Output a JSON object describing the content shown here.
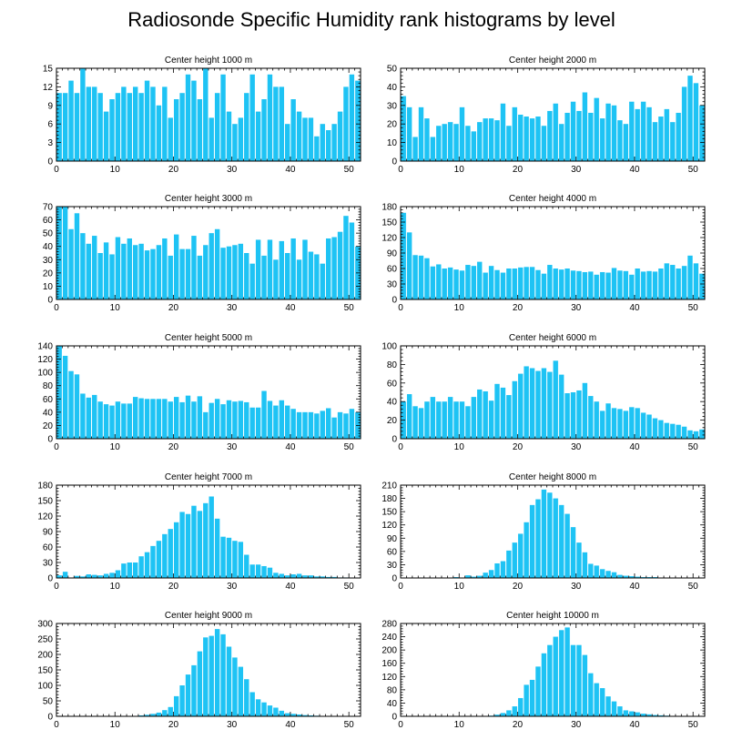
{
  "title": "Radiosonde Specific Humidity rank histograms by level",
  "bar_color": "#1ec3f4",
  "chart_data": [
    {
      "type": "bar",
      "title": "Center height 1000 m",
      "x": [
        0,
        1,
        2,
        3,
        4,
        5,
        6,
        7,
        8,
        9,
        10,
        11,
        12,
        13,
        14,
        15,
        16,
        17,
        18,
        19,
        20,
        21,
        22,
        23,
        24,
        25,
        26,
        27,
        28,
        29,
        30,
        31,
        32,
        33,
        34,
        35,
        36,
        37,
        38,
        39,
        40,
        41,
        42,
        43,
        44,
        45,
        46,
        47,
        48,
        49,
        50,
        51
      ],
      "values": [
        11,
        11,
        13,
        11,
        15,
        12,
        12,
        11,
        8,
        10,
        11,
        12,
        11,
        12,
        11,
        13,
        12,
        9,
        12,
        7,
        10,
        11,
        14,
        13,
        10,
        15,
        7,
        11,
        14,
        8,
        6,
        7,
        11,
        14,
        8,
        10,
        14,
        12,
        12,
        6,
        10,
        8,
        7,
        7,
        4,
        6,
        5,
        6,
        8,
        12,
        14,
        13
      ],
      "xlim": [
        0,
        52
      ],
      "ylim": [
        0,
        15
      ],
      "xticks": [
        0,
        10,
        20,
        30,
        40,
        50
      ],
      "yticks": [
        0,
        3,
        6,
        9,
        12,
        15
      ]
    },
    {
      "type": "bar",
      "title": "Center height 2000 m",
      "x": [
        0,
        1,
        2,
        3,
        4,
        5,
        6,
        7,
        8,
        9,
        10,
        11,
        12,
        13,
        14,
        15,
        16,
        17,
        18,
        19,
        20,
        21,
        22,
        23,
        24,
        25,
        26,
        27,
        28,
        29,
        30,
        31,
        32,
        33,
        34,
        35,
        36,
        37,
        38,
        39,
        40,
        41,
        42,
        43,
        44,
        45,
        46,
        47,
        48,
        49,
        50,
        51
      ],
      "values": [
        35,
        29,
        13,
        29,
        23,
        13,
        19,
        20,
        21,
        20,
        29,
        19,
        16,
        21,
        23,
        23,
        22,
        31,
        19,
        29,
        25,
        24,
        23,
        24,
        19,
        27,
        31,
        20,
        26,
        32,
        27,
        37,
        26,
        34,
        23,
        31,
        30,
        22,
        20,
        32,
        28,
        32,
        29,
        21,
        24,
        28,
        21,
        26,
        40,
        46,
        42,
        30
      ],
      "xlim": [
        0,
        52
      ],
      "ylim": [
        0,
        50
      ],
      "xticks": [
        0,
        10,
        20,
        30,
        40,
        50
      ],
      "yticks": [
        0,
        10,
        20,
        30,
        40,
        50
      ]
    },
    {
      "type": "bar",
      "title": "Center height 3000 m",
      "x": [
        0,
        1,
        2,
        3,
        4,
        5,
        6,
        7,
        8,
        9,
        10,
        11,
        12,
        13,
        14,
        15,
        16,
        17,
        18,
        19,
        20,
        21,
        22,
        23,
        24,
        25,
        26,
        27,
        28,
        29,
        30,
        31,
        32,
        33,
        34,
        35,
        36,
        37,
        38,
        39,
        40,
        41,
        42,
        43,
        44,
        45,
        46,
        47,
        48,
        49,
        50,
        51
      ],
      "values": [
        70,
        70,
        53,
        65,
        50,
        42,
        48,
        35,
        43,
        34,
        47,
        42,
        46,
        41,
        42,
        37,
        38,
        41,
        46,
        33,
        49,
        38,
        38,
        48,
        33,
        41,
        50,
        53,
        39,
        40,
        41,
        42,
        35,
        27,
        45,
        33,
        45,
        30,
        44,
        35,
        46,
        30,
        45,
        36,
        34,
        27,
        46,
        47,
        51,
        63,
        58,
        40
      ],
      "xlim": [
        0,
        52
      ],
      "ylim": [
        0,
        70
      ],
      "xticks": [
        0,
        10,
        20,
        30,
        40,
        50
      ],
      "yticks": [
        0,
        10,
        20,
        30,
        40,
        50,
        60,
        70
      ]
    },
    {
      "type": "bar",
      "title": "Center height 4000 m",
      "x": [
        0,
        1,
        2,
        3,
        4,
        5,
        6,
        7,
        8,
        9,
        10,
        11,
        12,
        13,
        14,
        15,
        16,
        17,
        18,
        19,
        20,
        21,
        22,
        23,
        24,
        25,
        26,
        27,
        28,
        29,
        30,
        31,
        32,
        33,
        34,
        35,
        36,
        37,
        38,
        39,
        40,
        41,
        42,
        43,
        44,
        45,
        46,
        47,
        48,
        49,
        50,
        51
      ],
      "values": [
        168,
        130,
        86,
        85,
        80,
        64,
        68,
        60,
        62,
        58,
        56,
        67,
        65,
        73,
        52,
        65,
        57,
        52,
        60,
        60,
        62,
        63,
        63,
        57,
        50,
        67,
        60,
        58,
        60,
        56,
        55,
        53,
        54,
        48,
        53,
        52,
        61,
        56,
        55,
        48,
        60,
        54,
        55,
        54,
        60,
        70,
        67,
        60,
        65,
        85,
        70,
        50
      ],
      "xlim": [
        0,
        52
      ],
      "ylim": [
        0,
        180
      ],
      "xticks": [
        0,
        10,
        20,
        30,
        40,
        50
      ],
      "yticks": [
        0,
        30,
        60,
        90,
        120,
        150,
        180
      ]
    },
    {
      "type": "bar",
      "title": "Center height 5000 m",
      "x": [
        0,
        1,
        2,
        3,
        4,
        5,
        6,
        7,
        8,
        9,
        10,
        11,
        12,
        13,
        14,
        15,
        16,
        17,
        18,
        19,
        20,
        21,
        22,
        23,
        24,
        25,
        26,
        27,
        28,
        29,
        30,
        31,
        32,
        33,
        34,
        35,
        36,
        37,
        38,
        39,
        40,
        41,
        42,
        43,
        44,
        45,
        46,
        47,
        48,
        49,
        50,
        51
      ],
      "values": [
        140,
        125,
        102,
        97,
        68,
        62,
        66,
        56,
        52,
        50,
        56,
        53,
        53,
        63,
        61,
        60,
        60,
        60,
        60,
        56,
        63,
        55,
        65,
        56,
        64,
        40,
        54,
        60,
        52,
        58,
        56,
        57,
        55,
        47,
        47,
        72,
        57,
        50,
        58,
        50,
        45,
        40,
        40,
        40,
        38,
        42,
        46,
        32,
        40,
        38,
        45,
        40
      ],
      "xlim": [
        0,
        52
      ],
      "ylim": [
        0,
        140
      ],
      "xticks": [
        0,
        10,
        20,
        30,
        40,
        50
      ],
      "yticks": [
        0,
        20,
        40,
        60,
        80,
        100,
        120,
        140
      ]
    },
    {
      "type": "bar",
      "title": "Center height 6000 m",
      "x": [
        0,
        1,
        2,
        3,
        4,
        5,
        6,
        7,
        8,
        9,
        10,
        11,
        12,
        13,
        14,
        15,
        16,
        17,
        18,
        19,
        20,
        21,
        22,
        23,
        24,
        25,
        26,
        27,
        28,
        29,
        30,
        31,
        32,
        33,
        34,
        35,
        36,
        37,
        38,
        39,
        40,
        41,
        42,
        43,
        44,
        45,
        46,
        47,
        48,
        49,
        50,
        51
      ],
      "values": [
        40,
        48,
        35,
        33,
        40,
        45,
        40,
        40,
        45,
        40,
        40,
        35,
        45,
        53,
        51,
        41,
        59,
        55,
        47,
        62,
        70,
        78,
        76,
        73,
        76,
        72,
        84,
        69,
        49,
        50,
        52,
        60,
        46,
        40,
        30,
        38,
        33,
        32,
        30,
        34,
        33,
        28,
        26,
        22,
        20,
        17,
        16,
        15,
        13,
        9,
        8,
        10
      ],
      "xlim": [
        0,
        52
      ],
      "ylim": [
        0,
        100
      ],
      "xticks": [
        0,
        10,
        20,
        30,
        40,
        50
      ],
      "yticks": [
        0,
        20,
        40,
        60,
        80,
        100
      ]
    },
    {
      "type": "bar",
      "title": "Center height 7000 m",
      "x": [
        0,
        1,
        2,
        3,
        4,
        5,
        6,
        7,
        8,
        9,
        10,
        11,
        12,
        13,
        14,
        15,
        16,
        17,
        18,
        19,
        20,
        21,
        22,
        23,
        24,
        25,
        26,
        27,
        28,
        29,
        30,
        31,
        32,
        33,
        34,
        35,
        36,
        37,
        38,
        39,
        40,
        41,
        42,
        43,
        44,
        45,
        46,
        47,
        48,
        49,
        50,
        51
      ],
      "values": [
        5,
        12,
        0,
        4,
        3,
        7,
        6,
        5,
        8,
        10,
        15,
        28,
        30,
        30,
        42,
        50,
        62,
        72,
        85,
        95,
        108,
        128,
        124,
        140,
        130,
        145,
        158,
        115,
        80,
        78,
        72,
        70,
        45,
        26,
        26,
        23,
        20,
        10,
        8,
        5,
        7,
        8,
        5,
        5,
        3,
        3,
        2,
        2,
        1,
        1,
        0,
        0
      ],
      "xlim": [
        0,
        52
      ],
      "ylim": [
        0,
        180
      ],
      "xticks": [
        0,
        10,
        20,
        30,
        40,
        50
      ],
      "yticks": [
        0,
        30,
        60,
        90,
        120,
        150,
        180
      ]
    },
    {
      "type": "bar",
      "title": "Center height 8000 m",
      "x": [
        0,
        1,
        2,
        3,
        4,
        5,
        6,
        7,
        8,
        9,
        10,
        11,
        12,
        13,
        14,
        15,
        16,
        17,
        18,
        19,
        20,
        21,
        22,
        23,
        24,
        25,
        26,
        27,
        28,
        29,
        30,
        31,
        32,
        33,
        34,
        35,
        36,
        37,
        38,
        39,
        40,
        41,
        42,
        43,
        44,
        45,
        46,
        47,
        48,
        49,
        50,
        51
      ],
      "values": [
        0,
        0,
        0,
        0,
        0,
        0,
        0,
        0,
        0,
        2,
        0,
        6,
        3,
        5,
        12,
        18,
        33,
        38,
        62,
        80,
        100,
        126,
        165,
        178,
        200,
        193,
        180,
        165,
        145,
        115,
        80,
        58,
        32,
        28,
        20,
        16,
        13,
        7,
        5,
        4,
        3,
        2,
        2,
        2,
        1,
        1,
        0,
        1,
        0,
        1,
        0,
        0
      ],
      "xlim": [
        0,
        52
      ],
      "ylim": [
        0,
        210
      ],
      "xticks": [
        0,
        10,
        20,
        30,
        40,
        50
      ],
      "yticks": [
        0,
        30,
        60,
        90,
        120,
        150,
        180,
        210
      ]
    },
    {
      "type": "bar",
      "title": "Center height 9000 m",
      "x": [
        0,
        1,
        2,
        3,
        4,
        5,
        6,
        7,
        8,
        9,
        10,
        11,
        12,
        13,
        14,
        15,
        16,
        17,
        18,
        19,
        20,
        21,
        22,
        23,
        24,
        25,
        26,
        27,
        28,
        29,
        30,
        31,
        32,
        33,
        34,
        35,
        36,
        37,
        38,
        39,
        40,
        41,
        42,
        43,
        44,
        45,
        46,
        47,
        48,
        49,
        50,
        51
      ],
      "values": [
        0,
        0,
        0,
        0,
        0,
        0,
        0,
        0,
        0,
        0,
        0,
        0,
        0,
        0,
        3,
        5,
        8,
        12,
        20,
        30,
        65,
        100,
        135,
        165,
        210,
        255,
        260,
        282,
        265,
        225,
        190,
        160,
        120,
        78,
        55,
        45,
        35,
        28,
        18,
        10,
        8,
        6,
        4,
        3,
        2,
        1,
        1,
        0,
        0,
        0,
        0,
        0
      ],
      "xlim": [
        0,
        52
      ],
      "ylim": [
        0,
        300
      ],
      "xticks": [
        0,
        10,
        20,
        30,
        40,
        50
      ],
      "yticks": [
        0,
        50,
        100,
        150,
        200,
        250,
        300
      ]
    },
    {
      "type": "bar",
      "title": "Center height 10000 m",
      "x": [
        0,
        1,
        2,
        3,
        4,
        5,
        6,
        7,
        8,
        9,
        10,
        11,
        12,
        13,
        14,
        15,
        16,
        17,
        18,
        19,
        20,
        21,
        22,
        23,
        24,
        25,
        26,
        27,
        28,
        29,
        30,
        31,
        32,
        33,
        34,
        35,
        36,
        37,
        38,
        39,
        40,
        41,
        42,
        43,
        44,
        45,
        46,
        47,
        48,
        49,
        50,
        51
      ],
      "values": [
        0,
        0,
        0,
        0,
        0,
        0,
        0,
        0,
        0,
        0,
        0,
        0,
        0,
        0,
        0,
        2,
        5,
        10,
        18,
        30,
        55,
        95,
        110,
        150,
        190,
        215,
        240,
        260,
        268,
        215,
        215,
        185,
        130,
        100,
        85,
        60,
        45,
        30,
        18,
        15,
        12,
        8,
        6,
        4,
        3,
        2,
        1,
        1,
        0,
        0,
        0,
        0
      ],
      "xlim": [
        0,
        52
      ],
      "ylim": [
        0,
        280
      ],
      "xticks": [
        0,
        10,
        20,
        30,
        40,
        50
      ],
      "yticks": [
        0,
        40,
        80,
        120,
        160,
        200,
        240,
        280
      ]
    }
  ]
}
